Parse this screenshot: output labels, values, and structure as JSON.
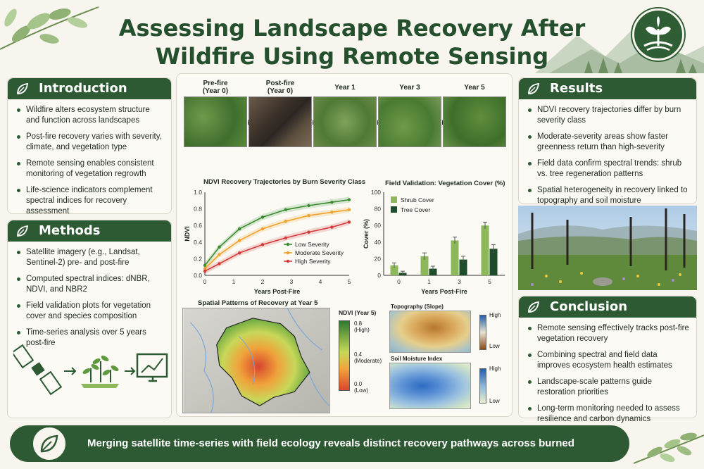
{
  "title": {
    "line1": "Assessing Landscape Recovery After",
    "line2": "Wildfire Using Remote Sensing"
  },
  "colors": {
    "primary": "#2e5a33",
    "background": "#f7f5ee",
    "accent_light": "#8cb85a"
  },
  "introduction": {
    "heading": "Introduction",
    "items": [
      "Wildfire alters ecosystem structure and function across landscapes",
      "Post-fire recovery varies with severity, climate, and vegetation type",
      "Remote sensing enables consistent monitoring of vegetation regrowth",
      "Life-science indicators complement spectral indices for recovery assessment"
    ]
  },
  "methods": {
    "heading": "Methods",
    "items": [
      "Satellite imagery (e.g., Landsat, Sentinel-2) pre- and post-fire",
      "Computed spectral indices: dNBR, NDVI, and NBR2",
      "Field validation plots for vegetation cover and species composition",
      "Time-series analysis over 5 years post-fire"
    ]
  },
  "results": {
    "heading": "Results",
    "items": [
      "NDVI recovery trajectories differ by burn severity class",
      "Moderate-severity areas show faster greenness return than high-severity",
      "Field data confirm spectral trends: shrub vs. tree regeneration patterns",
      "Spatial heterogeneity in recovery linked to topography and soil moisture"
    ]
  },
  "conclusion": {
    "heading": "Conclusion",
    "items": [
      "Remote sensing effectively tracks post-fire vegetation recovery",
      "Combining spectral and field data improves ecosystem health estimates",
      "Landscape-scale patterns guide restoration priorities",
      "Long-term monitoring needed to assess resilience and carbon dynamics"
    ]
  },
  "timeseries": {
    "labels": [
      {
        "l1": "Pre-fire",
        "l2": "(Year 0)"
      },
      {
        "l1": "Post-fire",
        "l2": "(Year 0)"
      },
      {
        "l1": "Year 1",
        "l2": ""
      },
      {
        "l1": "Year 3",
        "l2": ""
      },
      {
        "l1": "Year 5",
        "l2": ""
      }
    ]
  },
  "chart_data": [
    {
      "type": "line",
      "title": "NDVI Recovery Trajectories by Burn Severity Class",
      "xlabel": "Years Post-Fire",
      "ylabel": "NDVI",
      "xlim": [
        0,
        5
      ],
      "ylim": [
        0,
        1.0
      ],
      "xticks": [
        "0",
        "1",
        "2",
        "3",
        "4",
        "5"
      ],
      "yticks": [
        "0.0",
        "0.2",
        "0.4",
        "0.6",
        "0.8",
        "1.0"
      ],
      "legend_position": "bottom-right",
      "series": [
        {
          "name": "Low Severity",
          "color": "#3a8a2e",
          "x": [
            0,
            0.5,
            1.2,
            2,
            2.8,
            3.6,
            4.4,
            5
          ],
          "y": [
            0.12,
            0.34,
            0.56,
            0.7,
            0.79,
            0.84,
            0.88,
            0.91
          ]
        },
        {
          "name": "Moderate Severity",
          "color": "#f0a22a",
          "x": [
            0,
            0.5,
            1.2,
            2,
            2.8,
            3.6,
            4.4,
            5
          ],
          "y": [
            0.08,
            0.25,
            0.42,
            0.56,
            0.65,
            0.72,
            0.76,
            0.79
          ]
        },
        {
          "name": "High Severity",
          "color": "#d23a3a",
          "x": [
            0,
            0.5,
            1.2,
            2,
            2.8,
            3.6,
            4.4,
            5
          ],
          "y": [
            0.05,
            0.14,
            0.27,
            0.37,
            0.45,
            0.52,
            0.58,
            0.64
          ]
        }
      ]
    },
    {
      "type": "bar",
      "title": "Field Validation: Vegetation Cover (%)",
      "xlabel": "Years Post-Fire",
      "ylabel": "Cover (%)",
      "ylim": [
        0,
        100
      ],
      "yticks": [
        "0",
        "20",
        "40",
        "60",
        "80",
        "100"
      ],
      "categories": [
        "0",
        "1",
        "3",
        "5"
      ],
      "legend_position": "top-left",
      "series": [
        {
          "name": "Shrub Cover",
          "color": "#8cb85a",
          "values": [
            12,
            23,
            42,
            60
          ],
          "errors": [
            3,
            4,
            4,
            4
          ]
        },
        {
          "name": "Tree Cover",
          "color": "#1e4d2b",
          "values": [
            3,
            8,
            19,
            32
          ],
          "errors": [
            2,
            3,
            4,
            5
          ]
        }
      ]
    }
  ],
  "spatial": {
    "title": "Spatial Patterns of Recovery at Year 5",
    "colorbar_title": "NDVI (Year 5)",
    "ticks": [
      {
        "v": "0.8",
        "s": "(High)"
      },
      {
        "v": "0.4",
        "s": "(Moderate)"
      },
      {
        "v": "0.0",
        "s": "(Low)"
      }
    ]
  },
  "topography": {
    "title": "Topography (Slope)",
    "high": "High",
    "low": "Low"
  },
  "soil": {
    "title": "Soil Moisture Index",
    "high": "High",
    "low": "Low"
  },
  "footer": {
    "text": "Merging satellite time-series with field ecology reveals distinct recovery pathways across burned landscapes."
  }
}
